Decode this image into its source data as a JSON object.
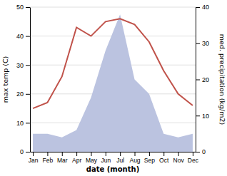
{
  "chart_data": {
    "type": "line",
    "categories": [
      "Jan",
      "Feb",
      "Mar",
      "Apr",
      "May",
      "Jun",
      "Jul",
      "Aug",
      "Sep",
      "Oct",
      "Nov",
      "Dec"
    ],
    "xlabel": "date (month)",
    "ylabel": "max temp (C)",
    "y2label": "med. precipitation (kg/m2)",
    "ylim": [
      0,
      50
    ],
    "yticks": [
      0,
      10,
      20,
      30,
      40,
      50
    ],
    "y2lim": [
      0,
      40
    ],
    "y2ticks": [
      0,
      10,
      20,
      30,
      40
    ],
    "grid": true,
    "series": [
      {
        "type": "area",
        "axis": "y2",
        "color": "#bbc3e0",
        "values": [
          5,
          5,
          4,
          6,
          15,
          28,
          38,
          20,
          16,
          5,
          4,
          5
        ]
      },
      {
        "type": "line",
        "color": "#c0524a",
        "values": [
          15,
          17,
          26,
          43,
          40,
          45,
          46,
          44,
          38,
          28,
          20,
          16
        ]
      }
    ]
  }
}
